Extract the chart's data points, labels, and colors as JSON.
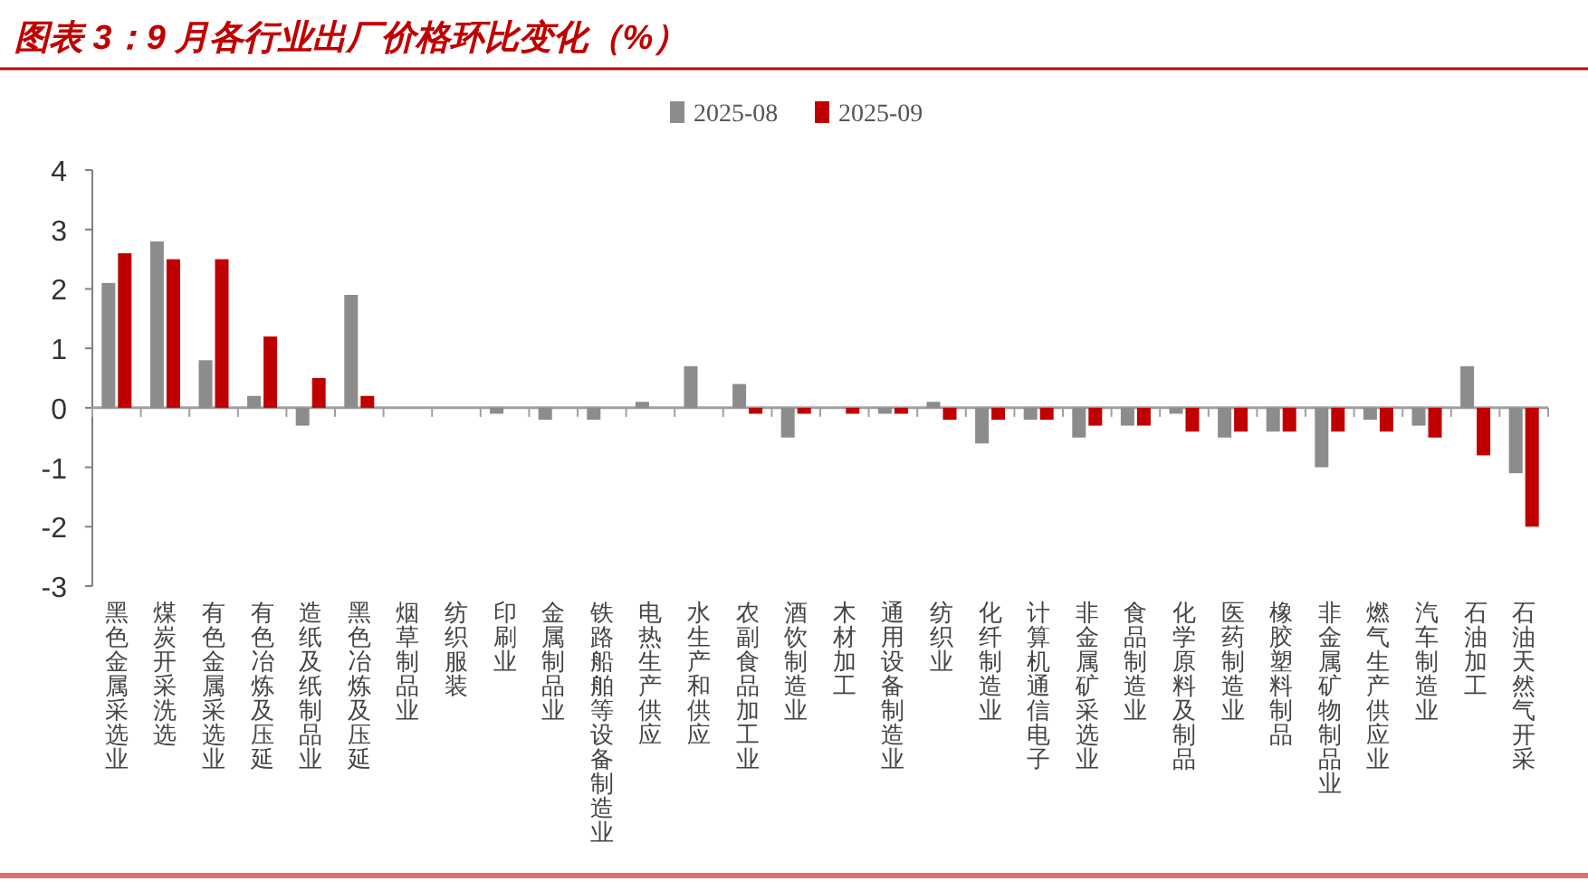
{
  "chart_data": {
    "type": "bar",
    "title": "图表 3：9 月各行业出厂价格环比变化（%）",
    "categories": [
      "黑色金属采选业",
      "煤炭开采洗选",
      "有色金属采选业",
      "有色冶炼及压延",
      "造纸及纸制品业",
      "黑色冶炼及压延",
      "烟草制品业",
      "纺织服装",
      "印刷业",
      "金属制品业",
      "铁路船舶等设备制造业",
      "电热生产供应",
      "水生产和供应",
      "农副食品加工业",
      "酒饮制造业",
      "木材加工",
      "通用设备制造业",
      "纺织业",
      "化纤制造业",
      "计算机通信电子",
      "非金属矿采选业",
      "食品制造业",
      "化学原料及制品",
      "医药制造业",
      "橡胶塑料制品",
      "非金属矿物制品业",
      "燃气生产供应业",
      "汽车制造业",
      "石油加工",
      "石油天然气开采"
    ],
    "series": [
      {
        "name": "2025-08",
        "color": "#8c8c8c",
        "values": [
          2.1,
          2.8,
          0.8,
          0.2,
          -0.3,
          1.9,
          0,
          0,
          -0.1,
          -0.2,
          -0.2,
          0.1,
          0.7,
          0.4,
          -0.5,
          0,
          -0.1,
          0.1,
          -0.6,
          -0.2,
          -0.5,
          -0.3,
          -0.1,
          -0.5,
          -0.4,
          -1.0,
          -0.2,
          -0.3,
          0.7,
          -1.1
        ]
      },
      {
        "name": "2025-09",
        "color": "#c00000",
        "values": [
          2.6,
          2.5,
          2.5,
          1.2,
          0.5,
          0.2,
          0,
          0,
          0,
          0,
          0,
          0,
          0,
          -0.1,
          -0.1,
          -0.1,
          -0.1,
          -0.2,
          -0.2,
          -0.2,
          -0.3,
          -0.3,
          -0.4,
          -0.4,
          -0.4,
          -0.4,
          -0.4,
          -0.5,
          -0.8,
          -2.0
        ]
      }
    ],
    "ylim": [
      -3,
      4
    ],
    "yticks": [
      -3,
      -2,
      -1,
      0,
      1,
      2,
      3,
      4
    ],
    "legend": "top"
  }
}
